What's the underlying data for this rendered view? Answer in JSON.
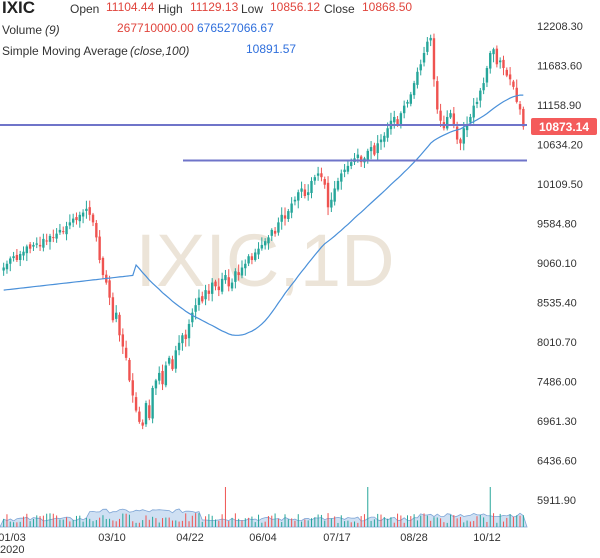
{
  "chart_data": {
    "type": "candlestick",
    "symbol": "IXIC",
    "watermark": "IXIC,1D",
    "ohlc": {
      "open_label": "Open",
      "open": "11104.44",
      "high_label": "High",
      "high": "11129.13",
      "low_label": "Low",
      "low": "10856.12",
      "close_label": "Close",
      "close": "10868.50"
    },
    "volume": {
      "label": "Volume",
      "param": "(9)",
      "value": "267710000.00",
      "ma_value": "676527066.67"
    },
    "sma": {
      "label": "Simple Moving Average",
      "param": "(close,100)",
      "value": "10891.57"
    },
    "last_price": "10873.14",
    "y_ticks": [
      "12208.30",
      "11683.60",
      "11158.90",
      "10634.20",
      "10109.50",
      "9584.80",
      "9060.10",
      "8535.40",
      "8010.70",
      "7486.00",
      "6961.30",
      "6436.60",
      "5911.90"
    ],
    "x_ticks": [
      "01/03",
      "03/10",
      "04/22",
      "06/04",
      "07/17",
      "08/28",
      "10/12"
    ],
    "x_year": "2020",
    "ylim": [
      5700,
      12400
    ],
    "close_series": [
      9000,
      9050,
      9120,
      9150,
      9100,
      9180,
      9210,
      9280,
      9250,
      9300,
      9320,
      9280,
      9380,
      9350,
      9420,
      9400,
      9450,
      9500,
      9470,
      9550,
      9600,
      9650,
      9630,
      9700,
      9730,
      9780,
      9700,
      9600,
      9400,
      9100,
      8900,
      8800,
      8600,
      8300,
      8400,
      8100,
      7950,
      7800,
      7500,
      7300,
      7100,
      6950,
      6900,
      7200,
      7000,
      7400,
      7500,
      7600,
      7450,
      7700,
      7800,
      7650,
      7900,
      8000,
      8100,
      8050,
      8250,
      8400,
      8500,
      8600,
      8550,
      8700,
      8650,
      8800,
      8750,
      8700,
      8850,
      8900,
      8750,
      8800,
      8950,
      8900,
      9000,
      9050,
      9150,
      9100,
      9200,
      9250,
      9300,
      9350,
      9400,
      9500,
      9450,
      9600,
      9700,
      9650,
      9750,
      9850,
      9900,
      10000,
      10050,
      9950,
      10000,
      10150,
      10200,
      10250,
      10200,
      10100,
      9800,
      9900,
      10050,
      10150,
      10250,
      10300,
      10350,
      10400,
      10450,
      10500,
      10400,
      10450,
      10550,
      10600,
      10500,
      10650,
      10700,
      10750,
      10850,
      10950,
      11000,
      10900,
      11050,
      11150,
      11200,
      11300,
      11450,
      11600,
      11700,
      11850,
      12000,
      12050,
      11500,
      11100,
      10950,
      10850,
      11000,
      11050,
      10900,
      10700,
      10650,
      10850,
      10900,
      11000,
      11150,
      11200,
      11350,
      11450,
      11650,
      11850,
      11900,
      11700,
      11750,
      11650,
      11550,
      11500,
      11400,
      11200,
      11100,
      10873
    ]
  },
  "colors": {
    "up": "#26a69a",
    "down": "#ef5350",
    "sma_line": "#4a90d9",
    "h_line": "#6f74c9",
    "price_badge": "#f45b5b",
    "value_red": "#e0443c",
    "value_blue": "#2f6fdc",
    "volume_fill": "#cfe0f3"
  }
}
